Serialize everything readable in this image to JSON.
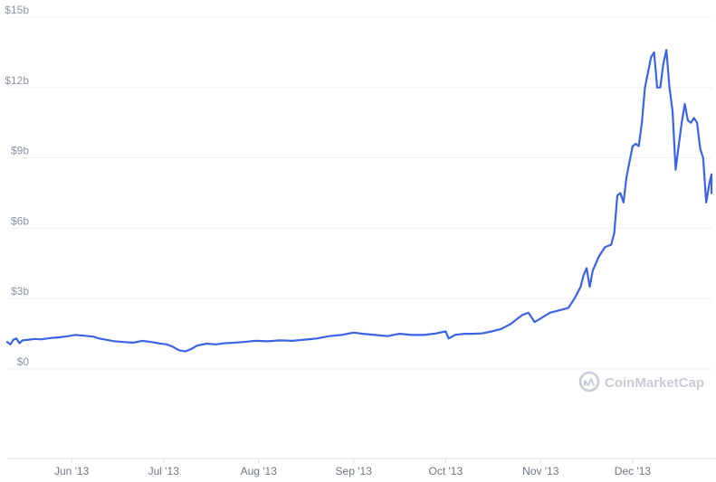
{
  "watermark": {
    "text": "CoinMarketCap",
    "icon": "coinmarketcap-logo-icon",
    "color": "#c7ccd6"
  },
  "colors": {
    "line": "#3c63e6",
    "grid": "#eef0f4",
    "axis": "#d9dde5"
  },
  "chart_data": {
    "type": "line",
    "title": "",
    "xlabel": "",
    "ylabel": "",
    "grid": true,
    "ylim": [
      -3.8,
      15
    ],
    "x_range": [
      "2013-05-11",
      "2013-12-27"
    ],
    "y_ticks": [
      {
        "value": 0,
        "label": "$0"
      },
      {
        "value": 3,
        "label": "$3b"
      },
      {
        "value": 6,
        "label": "$6b"
      },
      {
        "value": 9,
        "label": "$9b"
      },
      {
        "value": 12,
        "label": "$12b"
      },
      {
        "value": 15,
        "label": "$15b"
      }
    ],
    "x_ticks": [
      {
        "date": "2013-06-01",
        "label": "Jun '13"
      },
      {
        "date": "2013-07-01",
        "label": "Jul '13"
      },
      {
        "date": "2013-08-01",
        "label": "Aug '13"
      },
      {
        "date": "2013-09-01",
        "label": "Sep '13"
      },
      {
        "date": "2013-10-01",
        "label": "Oct '13"
      },
      {
        "date": "2013-11-01",
        "label": "Nov '13"
      },
      {
        "date": "2013-12-01",
        "label": "Dec '13"
      }
    ],
    "series": [
      {
        "unit": "USD billions",
        "points": [
          [
            "2013-05-11",
            1.15
          ],
          [
            "2013-05-12",
            1.05
          ],
          [
            "2013-05-13",
            1.25
          ],
          [
            "2013-05-14",
            1.3
          ],
          [
            "2013-05-15",
            1.1
          ],
          [
            "2013-05-16",
            1.22
          ],
          [
            "2013-05-18",
            1.25
          ],
          [
            "2013-05-20",
            1.28
          ],
          [
            "2013-05-22",
            1.26
          ],
          [
            "2013-05-24",
            1.3
          ],
          [
            "2013-05-26",
            1.33
          ],
          [
            "2013-05-28",
            1.35
          ],
          [
            "2013-05-31",
            1.4
          ],
          [
            "2013-06-02",
            1.45
          ],
          [
            "2013-06-05",
            1.42
          ],
          [
            "2013-06-08",
            1.38
          ],
          [
            "2013-06-10",
            1.3
          ],
          [
            "2013-06-12",
            1.25
          ],
          [
            "2013-06-15",
            1.18
          ],
          [
            "2013-06-18",
            1.15
          ],
          [
            "2013-06-21",
            1.12
          ],
          [
            "2013-06-24",
            1.2
          ],
          [
            "2013-06-27",
            1.15
          ],
          [
            "2013-06-30",
            1.08
          ],
          [
            "2013-07-02",
            1.05
          ],
          [
            "2013-07-04",
            0.95
          ],
          [
            "2013-07-06",
            0.8
          ],
          [
            "2013-07-08",
            0.75
          ],
          [
            "2013-07-10",
            0.85
          ],
          [
            "2013-07-12",
            1.0
          ],
          [
            "2013-07-15",
            1.08
          ],
          [
            "2013-07-18",
            1.05
          ],
          [
            "2013-07-21",
            1.1
          ],
          [
            "2013-07-24",
            1.12
          ],
          [
            "2013-07-27",
            1.15
          ],
          [
            "2013-07-31",
            1.2
          ],
          [
            "2013-08-04",
            1.18
          ],
          [
            "2013-08-08",
            1.22
          ],
          [
            "2013-08-12",
            1.2
          ],
          [
            "2013-08-16",
            1.25
          ],
          [
            "2013-08-20",
            1.3
          ],
          [
            "2013-08-24",
            1.4
          ],
          [
            "2013-08-28",
            1.45
          ],
          [
            "2013-09-01",
            1.55
          ],
          [
            "2013-09-04",
            1.5
          ],
          [
            "2013-09-08",
            1.45
          ],
          [
            "2013-09-12",
            1.4
          ],
          [
            "2013-09-16",
            1.5
          ],
          [
            "2013-09-20",
            1.45
          ],
          [
            "2013-09-24",
            1.45
          ],
          [
            "2013-09-28",
            1.52
          ],
          [
            "2013-10-01",
            1.6
          ],
          [
            "2013-10-02",
            1.3
          ],
          [
            "2013-10-04",
            1.45
          ],
          [
            "2013-10-07",
            1.5
          ],
          [
            "2013-10-10",
            1.5
          ],
          [
            "2013-10-13",
            1.52
          ],
          [
            "2013-10-16",
            1.6
          ],
          [
            "2013-10-19",
            1.7
          ],
          [
            "2013-10-22",
            1.9
          ],
          [
            "2013-10-24",
            2.1
          ],
          [
            "2013-10-26",
            2.3
          ],
          [
            "2013-10-28",
            2.4
          ],
          [
            "2013-10-30",
            2.0
          ],
          [
            "2013-11-01",
            2.15
          ],
          [
            "2013-11-04",
            2.4
          ],
          [
            "2013-11-07",
            2.5
          ],
          [
            "2013-11-10",
            2.6
          ],
          [
            "2013-11-12",
            3.0
          ],
          [
            "2013-11-14",
            3.5
          ],
          [
            "2013-11-15",
            4.0
          ],
          [
            "2013-11-16",
            4.3
          ],
          [
            "2013-11-17",
            3.5
          ],
          [
            "2013-11-18",
            4.2
          ],
          [
            "2013-11-20",
            4.8
          ],
          [
            "2013-11-22",
            5.2
          ],
          [
            "2013-11-24",
            5.3
          ],
          [
            "2013-11-25",
            5.8
          ],
          [
            "2013-11-26",
            7.4
          ],
          [
            "2013-11-27",
            7.5
          ],
          [
            "2013-11-28",
            7.1
          ],
          [
            "2013-11-29",
            8.2
          ],
          [
            "2013-12-01",
            9.5
          ],
          [
            "2013-12-02",
            9.6
          ],
          [
            "2013-12-03",
            9.5
          ],
          [
            "2013-12-04",
            10.5
          ],
          [
            "2013-12-05",
            12.0
          ],
          [
            "2013-12-07",
            13.3
          ],
          [
            "2013-12-08",
            13.5
          ],
          [
            "2013-12-09",
            12.0
          ],
          [
            "2013-12-10",
            12.0
          ],
          [
            "2013-12-11",
            13.0
          ],
          [
            "2013-12-12",
            13.6
          ],
          [
            "2013-12-13",
            12.0
          ],
          [
            "2013-12-14",
            11.0
          ],
          [
            "2013-12-15",
            8.5
          ],
          [
            "2013-12-16",
            9.5
          ],
          [
            "2013-12-17",
            10.5
          ],
          [
            "2013-12-18",
            11.3
          ],
          [
            "2013-12-19",
            10.6
          ],
          [
            "2013-12-20",
            10.5
          ],
          [
            "2013-12-21",
            10.7
          ],
          [
            "2013-12-22",
            10.5
          ],
          [
            "2013-12-23",
            9.4
          ],
          [
            "2013-12-24",
            9.0
          ],
          [
            "2013-12-25",
            7.1
          ],
          [
            "2013-12-26",
            7.9
          ],
          [
            "2013-12-27",
            8.3
          ],
          [
            "2013-12-28",
            7.5
          ],
          [
            "2013-12-29",
            7.8
          ]
        ]
      }
    ]
  }
}
